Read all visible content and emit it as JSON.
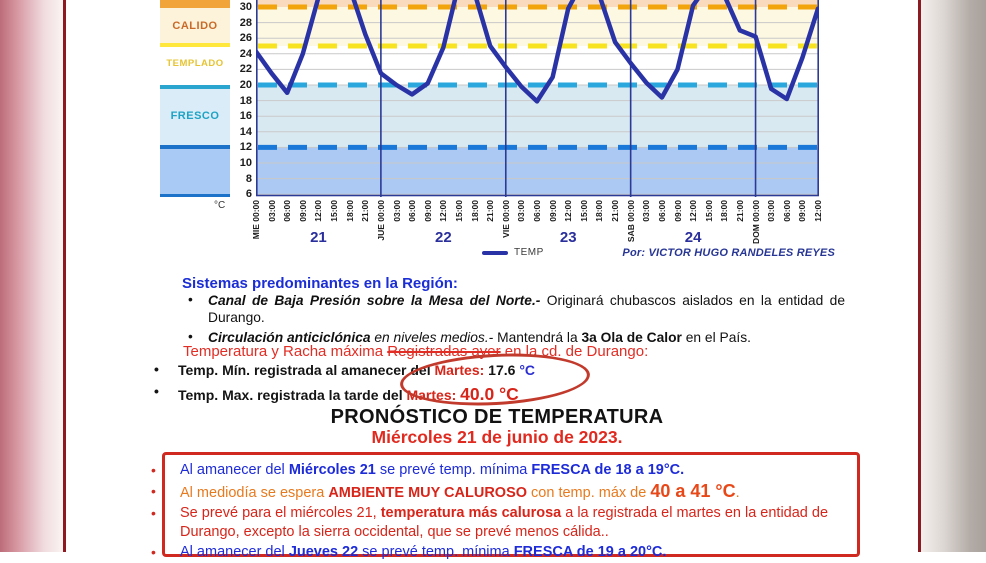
{
  "credit": "Por:  VICTOR HUGO RANDELES REYES",
  "unit_label": "°C",
  "chart_data": {
    "type": "line",
    "legend": "TEMP",
    "unit": "°C",
    "ylim": [
      6,
      31
    ],
    "yticks": [
      6,
      8,
      10,
      12,
      14,
      16,
      18,
      20,
      22,
      24,
      26,
      28,
      30
    ],
    "x_labels": [
      "MIE 00:00",
      "03:00",
      "06:00",
      "09:00",
      "12:00",
      "15:00",
      "18:00",
      "21:00",
      "JUE 00:00",
      "03:00",
      "06:00",
      "09:00",
      "12:00",
      "15:00",
      "18:00",
      "21:00",
      "VIE 00:00",
      "03:00",
      "06:00",
      "09:00",
      "12:00",
      "15:00",
      "18:00",
      "21:00",
      "SAB 00:00",
      "03:00",
      "06:00",
      "09:00",
      "12:00",
      "15:00",
      "18:00",
      "21:00",
      "DOM 00:00",
      "03:00",
      "06:00",
      "09:00",
      "12:00"
    ],
    "day_labels": [
      {
        "label": "21",
        "index": 4
      },
      {
        "label": "22",
        "index": 12
      },
      {
        "label": "23",
        "index": 20
      },
      {
        "label": "24",
        "index": 28
      }
    ],
    "day_separator_indices": [
      8,
      16,
      24,
      32
    ],
    "series": [
      {
        "name": "TEMP",
        "color": "#2a33a6",
        "values": [
          24.3,
          21.5,
          19.0,
          24.0,
          31.2,
          33.5,
          32.5,
          26.5,
          21.5,
          20.0,
          18.8,
          20.2,
          24.8,
          33.0,
          31.8,
          25.0,
          22.3,
          19.8,
          17.9,
          21.0,
          29.8,
          33.5,
          31.5,
          25.5,
          22.8,
          20.3,
          18.4,
          22.0,
          30.2,
          33.0,
          31.5,
          27.0,
          26.2,
          19.5,
          18.2,
          23.5,
          29.8
        ]
      }
    ],
    "zones": [
      {
        "label": "CALIDO",
        "range": "25-30 °C"
      },
      {
        "label": "TEMPLADO",
        "range": "20-25 °C"
      },
      {
        "label": "FRESCO",
        "range": "12-20 °C"
      }
    ],
    "bands": [
      {
        "from": 32.0,
        "to": 30,
        "color": "#f9dabd"
      },
      {
        "from": 30,
        "to": 25,
        "color": "#fdf8e1"
      },
      {
        "from": 25,
        "to": 20,
        "color": "#ffffff"
      },
      {
        "from": 20,
        "to": 12,
        "color": "#d9e9f1"
      },
      {
        "from": 12,
        "to": 6,
        "color": "#abc9f3"
      }
    ],
    "thresholds": [
      {
        "value": 30,
        "color": "#f2a40c"
      },
      {
        "value": 25,
        "color": "#f8e321"
      },
      {
        "value": 20,
        "color": "#2aa7dc"
      },
      {
        "value": 12,
        "color": "#1a79d8"
      }
    ],
    "grid": true,
    "legend_position": "bottom"
  },
  "sistemas": {
    "title": "Sistemas predominantes en la Región:",
    "bullet1": [
      {
        "t": "Canal de Baja Presión sobre la Mesa del Norte.-",
        "c": "bi"
      },
      {
        "t": " Originará chubascos aislados en la entidad de Durango."
      }
    ],
    "bullet2": [
      {
        "t": "Circulación anticiclónica",
        "c": "bi"
      },
      {
        "t": " en niveles medios.-",
        "c": "i"
      },
      {
        "t": " Mantendrá la "
      },
      {
        "t": "3a Ola de Calor",
        "c": "b"
      },
      {
        "t": " en el País."
      }
    ]
  },
  "registro": {
    "title": [
      {
        "t": "Temperatura y Racha máxima "
      },
      {
        "t": "Registradas ayer",
        "c": "strike"
      },
      {
        "t": " en la cd. de Durango:"
      }
    ],
    "min_line": [
      {
        "t": "Temp. Mín. registrada al amanecer del "
      },
      {
        "t": "Martes:",
        "c": "cred"
      },
      {
        "t": " 17.6 "
      },
      {
        "t": "°C",
        "c": "cblue"
      }
    ],
    "max_line": [
      {
        "t": "Temp. Max. registrada la tarde del "
      },
      {
        "t": "Martes:",
        "c": "cred"
      },
      {
        "t": "  "
      },
      {
        "t": "40.0 °C",
        "c": "cred big2"
      }
    ]
  },
  "pronostico": {
    "title": "PRONÓSTICO DE TEMPERATURA",
    "subtitle": "Miércoles 21 de junio de 2023.",
    "bullets": [
      {
        "color": "fc-blue",
        "segments": [
          {
            "t": "Al amanecer del "
          },
          {
            "t": "Miércoles 21",
            "c": "b"
          },
          {
            "t": " se prevé temp. mínima "
          },
          {
            "t": "FRESCA de 18 a 19°C.",
            "c": "b"
          }
        ]
      },
      {
        "color": "fc-orange",
        "segments": [
          {
            "t": "Al mediodía se espera "
          },
          {
            "t": "AMBIENTE MUY CALUROSO",
            "c": "b cred"
          },
          {
            "t": " con temp. máx de "
          },
          {
            "t": "40 a 41 °C",
            "c": "b big credo"
          },
          {
            "t": "."
          }
        ]
      },
      {
        "color": "fc-red",
        "segments": [
          {
            "t": "Se prevé para el miércoles 21, "
          },
          {
            "t": "temperatura más calurosa",
            "c": "b"
          },
          {
            "t": " a la registrada el martes en la entidad de Durango, excepto la sierra occidental, que se prevé menos cálida.."
          }
        ]
      },
      {
        "color": "fc-blue",
        "segments": [
          {
            "t": "Al amanecer del "
          },
          {
            "t": "Jueves 22",
            "c": "b"
          },
          {
            "t": " se prevé temp. mínima "
          },
          {
            "t": "FRESCA de 19 a 20°C.",
            "c": "b"
          }
        ]
      }
    ]
  }
}
